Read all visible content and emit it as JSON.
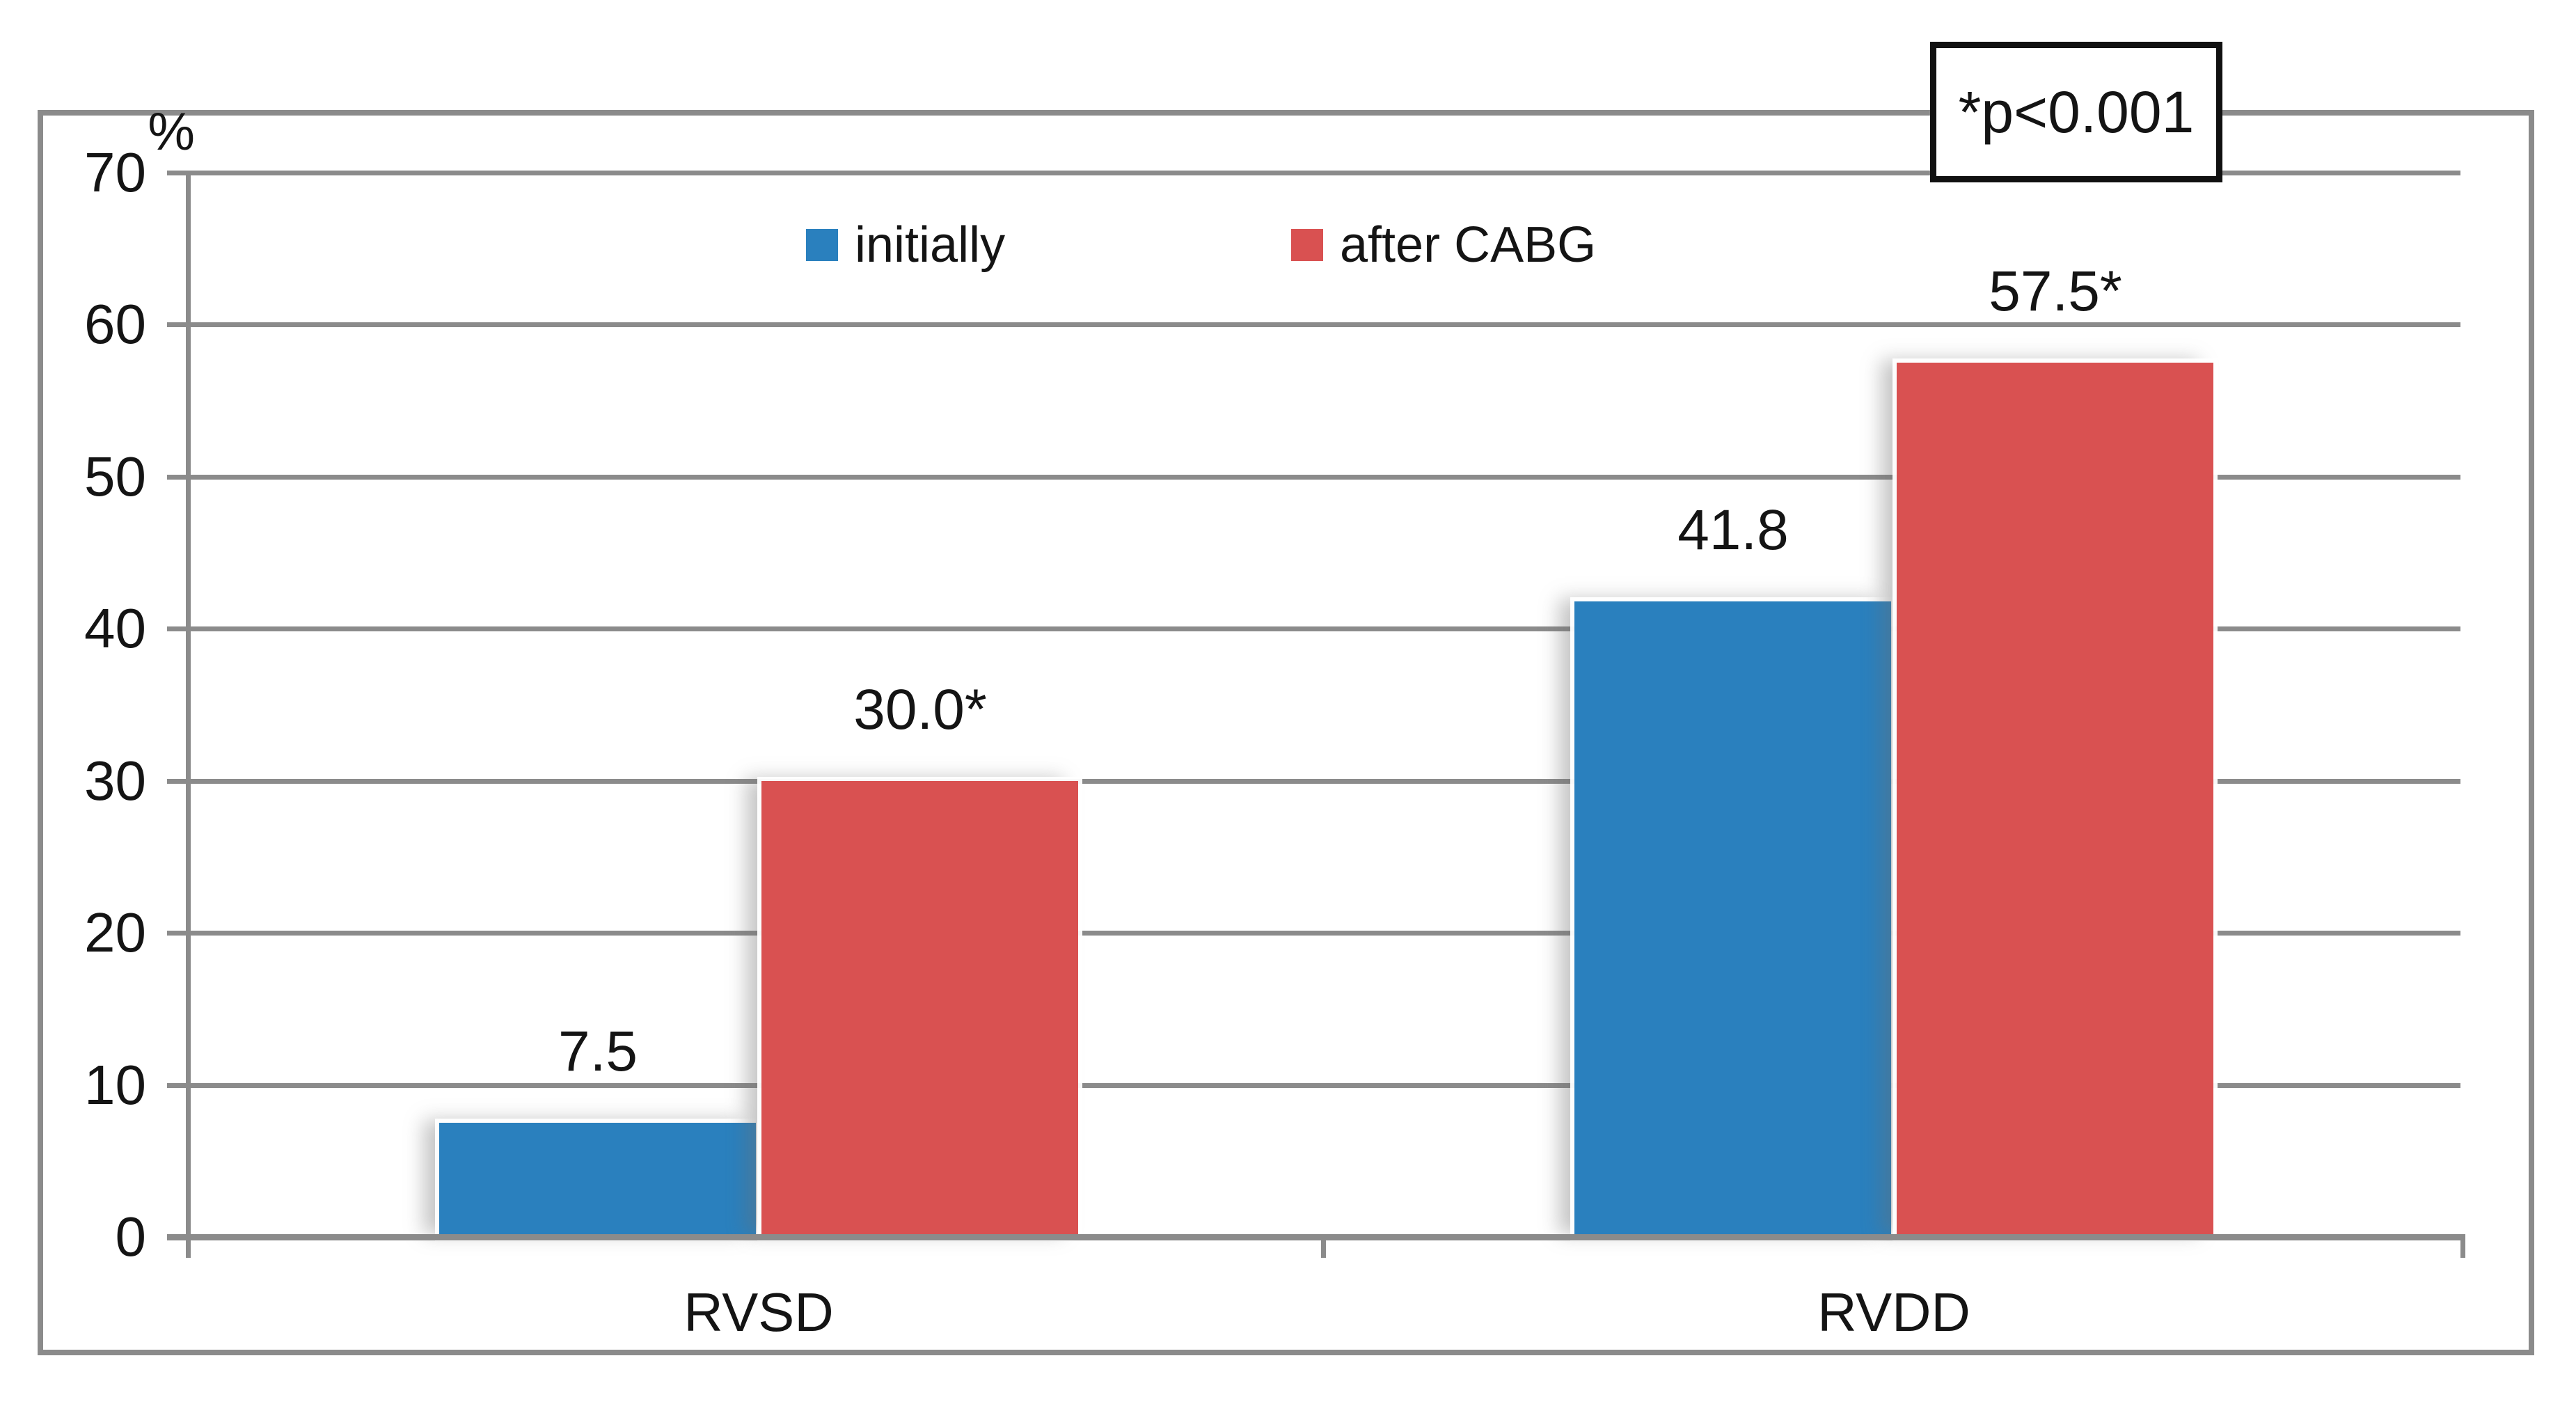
{
  "chart_data": {
    "type": "bar",
    "title": "",
    "unit_label": "%",
    "categories": [
      "RVSD",
      "RVDD"
    ],
    "series": [
      {
        "name": "initially",
        "color": "#2A80BE",
        "values": [
          7.5,
          41.8
        ],
        "display_labels": [
          "7.5",
          "41.8"
        ]
      },
      {
        "name": "after CABG",
        "color": "#D95151",
        "values": [
          30.0,
          57.5
        ],
        "display_labels": [
          "30.0*",
          "57.5*"
        ]
      }
    ],
    "ylim": [
      0,
      70
    ],
    "yticks": [
      0,
      10,
      20,
      30,
      40,
      50,
      60,
      70
    ],
    "grid": true,
    "grid_color": "#8B8B8B",
    "frame_color": "#8B8B8B",
    "background_color": "#FFFFFF",
    "legend_position": "top-center",
    "annotation": "*p<0.001"
  }
}
